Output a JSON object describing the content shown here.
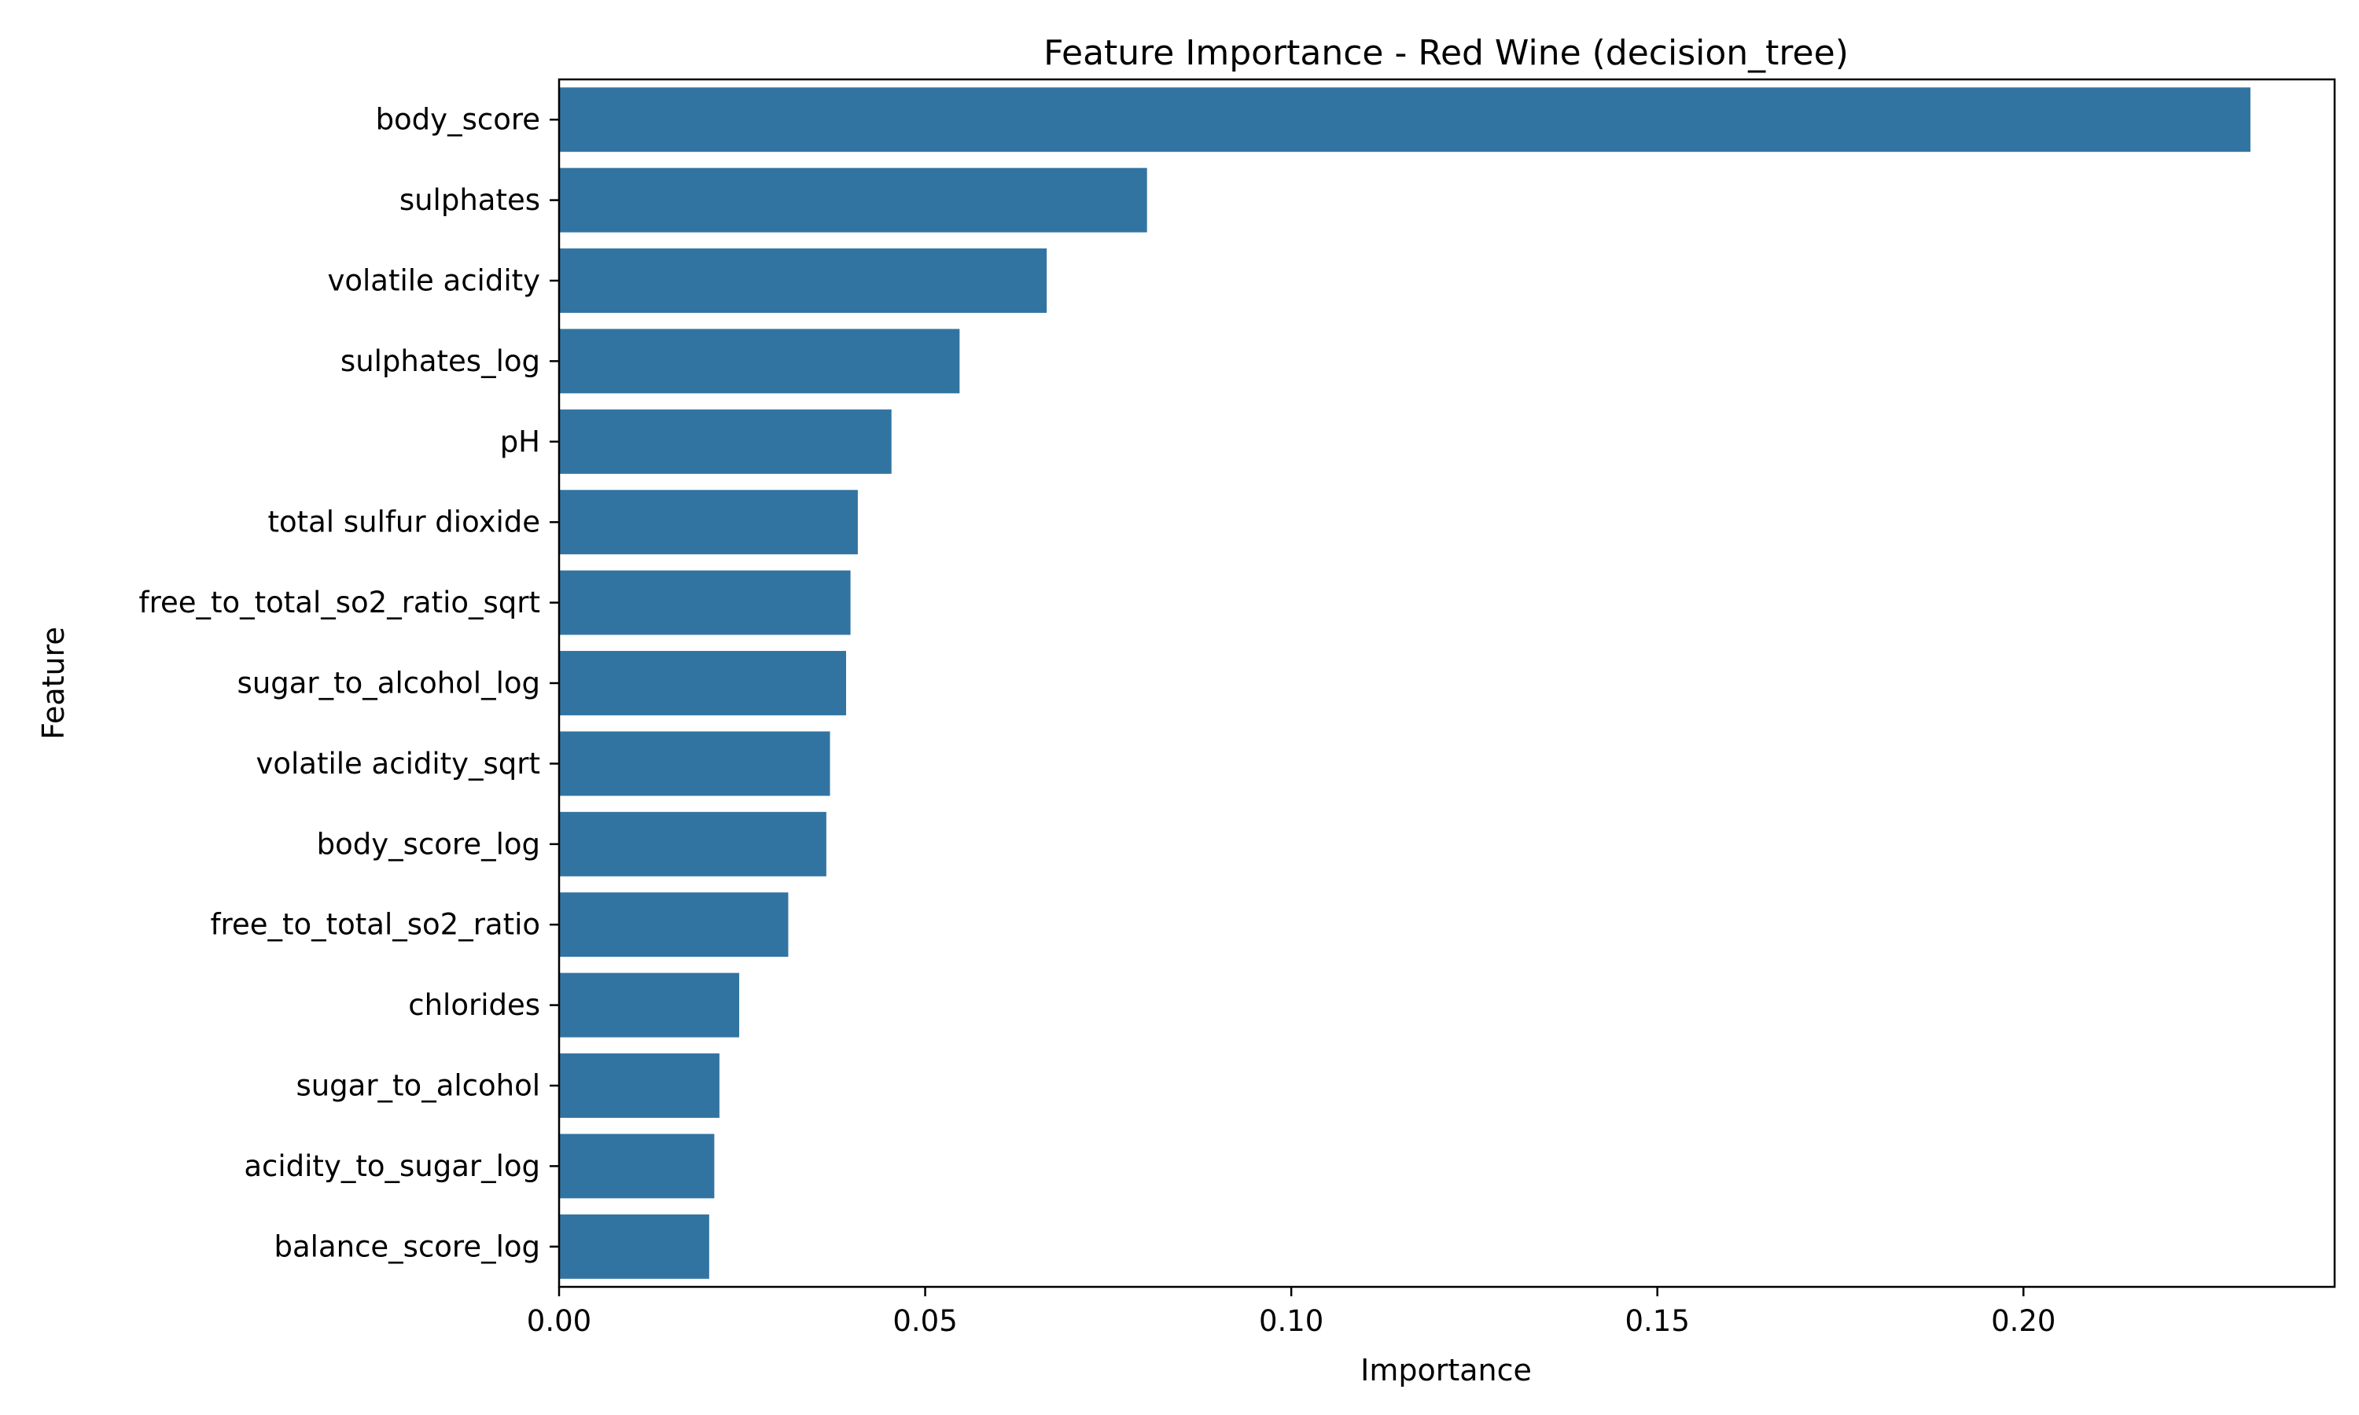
{
  "chart_data": {
    "type": "bar",
    "orientation": "horizontal",
    "title": "Feature Importance - Red Wine (decision_tree)",
    "xlabel": "Importance",
    "ylabel": "Feature",
    "xlim": [
      0.0,
      0.2425
    ],
    "xticks": [
      0.0,
      0.05,
      0.1,
      0.15,
      0.2
    ],
    "xtick_labels": [
      "0.00",
      "0.05",
      "0.10",
      "0.15",
      "0.20"
    ],
    "grid": false,
    "legend": "none",
    "bar_color": "#3274a1",
    "categories": [
      "body_score",
      "sulphates",
      "volatile acidity",
      "sulphates_log",
      "pH",
      "total sulfur dioxide",
      "free_to_total_so2_ratio_sqrt",
      "sugar_to_alcohol_log",
      "volatile acidity_sqrt",
      "body_score_log",
      "free_to_total_so2_ratio",
      "chlorides",
      "sugar_to_alcohol",
      "acidity_to_sugar_log",
      "balance_score_log"
    ],
    "values": [
      0.231,
      0.0803,
      0.0666,
      0.0547,
      0.0454,
      0.0408,
      0.0398,
      0.0392,
      0.037,
      0.0365,
      0.0313,
      0.0246,
      0.0219,
      0.0212,
      0.0205
    ]
  }
}
